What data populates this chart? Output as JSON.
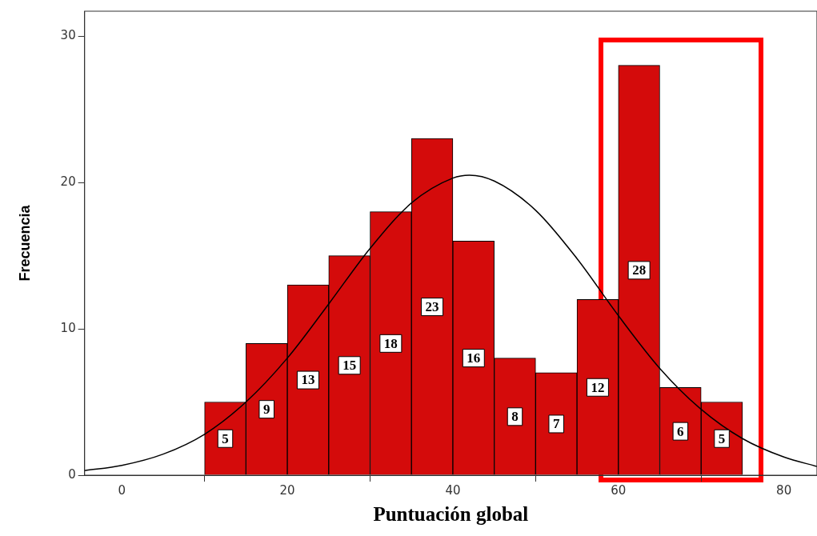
{
  "chart_data": {
    "type": "histogram",
    "xlabel": "Puntuación global",
    "ylabel": "Frecuencia",
    "bins": [
      10,
      15,
      20,
      25,
      30,
      35,
      40,
      45,
      50,
      55,
      60,
      65,
      70,
      75
    ],
    "values": [
      5,
      9,
      13,
      15,
      18,
      23,
      16,
      8,
      7,
      12,
      28,
      6,
      5
    ],
    "color": "#d40b0b",
    "value_labels": [
      "5",
      "9",
      "13",
      "15",
      "18",
      "23",
      "16",
      "8",
      "7",
      "12",
      "28",
      "6",
      "5"
    ],
    "series": [
      {
        "type": "line",
        "color": "#000000",
        "x": [
          -4.5,
          0,
          5,
          10,
          15,
          20,
          25,
          30,
          35,
          40,
          42,
          45,
          50,
          55,
          60,
          65,
          70,
          75,
          80,
          84
        ],
        "values": [
          0.31,
          0.67,
          1.44,
          2.8,
          5.0,
          8.0,
          11.7,
          15.5,
          18.6,
          20.3,
          20.5,
          20.1,
          18.1,
          14.8,
          10.9,
          7.3,
          4.5,
          2.5,
          1.24,
          0.6
        ]
      }
    ],
    "xlim": [
      -4.5,
      84
    ],
    "xticks": [
      0,
      20,
      40,
      60,
      80
    ],
    "ylim": [
      0,
      31.7
    ],
    "yticks": [
      0,
      10,
      20,
      30
    ],
    "grid": false,
    "legend": false
  }
}
